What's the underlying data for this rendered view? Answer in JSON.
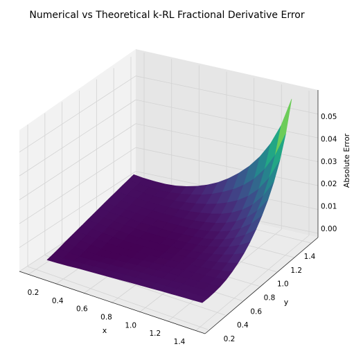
{
  "chart_data": {
    "type": "surface3d",
    "title": "Numerical vs Theoretical k-RL Fractional Derivative Error",
    "xlabel": "x",
    "ylabel": "y",
    "zlabel": "Absolute Error",
    "xlim": [
      0.1,
      1.6
    ],
    "ylim": [
      0.1,
      1.6
    ],
    "zlim": [
      0.0,
      0.055
    ],
    "x_ticks": [
      0.2,
      0.4,
      0.6,
      0.8,
      1.0,
      1.2,
      1.4
    ],
    "y_ticks": [
      0.2,
      0.4,
      0.6,
      0.8,
      1.0,
      1.2,
      1.4
    ],
    "z_ticks": [
      0.0,
      0.01,
      0.02,
      0.03,
      0.04,
      0.05
    ],
    "x_tick_labels": [
      "0.2",
      "0.4",
      "0.6",
      "0.8",
      "1.0",
      "1.2",
      "1.4"
    ],
    "y_tick_labels": [
      "0.2",
      "0.4",
      "0.6",
      "0.8",
      "1.0",
      "1.2",
      "1.4"
    ],
    "z_tick_labels": [
      "0.00",
      "0.01",
      "0.02",
      "0.03",
      "0.04",
      "0.05"
    ],
    "colormap": "viridis",
    "grid": true,
    "x": [
      0.1,
      0.2,
      0.3,
      0.4,
      0.5,
      0.6,
      0.7,
      0.8,
      0.9,
      1.0,
      1.1,
      1.2,
      1.3,
      1.4,
      1.5,
      1.6
    ],
    "y": [
      0.1,
      0.2,
      0.3,
      0.4,
      0.5,
      0.6,
      0.7,
      0.8,
      0.9,
      1.0,
      1.1,
      1.2,
      1.3,
      1.4,
      1.5,
      1.6
    ],
    "z": [
      [
        0.0011,
        0.0011,
        0.0012,
        0.0014,
        0.0015,
        0.0016,
        0.0017,
        0.0018,
        0.0019,
        0.002,
        0.0021,
        0.0022,
        0.0022,
        0.0023,
        0.0023,
        0.0024
      ],
      [
        0.0011,
        0.0008,
        0.0008,
        0.0009,
        0.0011,
        0.0012,
        0.0014,
        0.0015,
        0.0016,
        0.0017,
        0.0018,
        0.0018,
        0.0019,
        0.002,
        0.002,
        0.002
      ],
      [
        0.0012,
        0.0008,
        0.0004,
        0.0004,
        0.0006,
        0.0008,
        0.001,
        0.0012,
        0.0013,
        0.0014,
        0.0015,
        0.0016,
        0.0017,
        0.0017,
        0.0018,
        0.0019
      ],
      [
        0.0014,
        0.0009,
        0.0004,
        0.0001,
        0.0002,
        0.0004,
        0.0006,
        0.0008,
        0.001,
        0.0011,
        0.0013,
        0.0014,
        0.0015,
        0.0016,
        0.0017,
        0.002
      ],
      [
        0.0015,
        0.0011,
        0.0006,
        0.0002,
        0.0001,
        0.0002,
        0.0003,
        0.0005,
        0.0007,
        0.0009,
        0.0011,
        0.0013,
        0.0015,
        0.0017,
        0.002,
        0.0025
      ],
      [
        0.0016,
        0.0012,
        0.0008,
        0.0004,
        0.0002,
        0.0001,
        0.0002,
        0.0003,
        0.0005,
        0.0008,
        0.001,
        0.0013,
        0.0016,
        0.002,
        0.0026,
        0.0035
      ],
      [
        0.0017,
        0.0014,
        0.001,
        0.0006,
        0.0003,
        0.0002,
        0.0002,
        0.0003,
        0.0004,
        0.0007,
        0.001,
        0.0014,
        0.0019,
        0.0026,
        0.0036,
        0.0049
      ],
      [
        0.0018,
        0.0015,
        0.0012,
        0.0008,
        0.0005,
        0.0003,
        0.0003,
        0.0003,
        0.0005,
        0.0007,
        0.0011,
        0.0016,
        0.0023,
        0.0034,
        0.0048,
        0.0067
      ],
      [
        0.0019,
        0.0016,
        0.0013,
        0.001,
        0.0007,
        0.0005,
        0.0004,
        0.0005,
        0.0006,
        0.0009,
        0.0013,
        0.002,
        0.003,
        0.0044,
        0.0064,
        0.0091
      ],
      [
        0.002,
        0.0017,
        0.0014,
        0.0011,
        0.0009,
        0.0008,
        0.0007,
        0.0007,
        0.0009,
        0.0012,
        0.0017,
        0.0026,
        0.0039,
        0.0058,
        0.0085,
        0.0121
      ],
      [
        0.0021,
        0.0018,
        0.0015,
        0.0013,
        0.0011,
        0.001,
        0.001,
        0.0011,
        0.0013,
        0.0017,
        0.0024,
        0.0035,
        0.0051,
        0.0076,
        0.011,
        0.0158
      ],
      [
        0.0022,
        0.0018,
        0.0016,
        0.0014,
        0.0013,
        0.0013,
        0.0014,
        0.0016,
        0.002,
        0.0026,
        0.0035,
        0.0049,
        0.0069,
        0.0099,
        0.0142,
        0.0202
      ],
      [
        0.0022,
        0.0019,
        0.0017,
        0.0015,
        0.0015,
        0.0016,
        0.0019,
        0.0023,
        0.003,
        0.0039,
        0.0051,
        0.0069,
        0.0095,
        0.0131,
        0.0183,
        0.0257
      ],
      [
        0.0023,
        0.002,
        0.0017,
        0.0016,
        0.0017,
        0.002,
        0.0026,
        0.0034,
        0.0044,
        0.0058,
        0.0076,
        0.0099,
        0.0131,
        0.0175,
        0.0238,
        0.0327
      ],
      [
        0.0023,
        0.002,
        0.0018,
        0.0017,
        0.002,
        0.0026,
        0.0036,
        0.0048,
        0.0064,
        0.0085,
        0.011,
        0.0142,
        0.0183,
        0.0238,
        0.0313,
        0.042
      ],
      [
        0.0024,
        0.002,
        0.0019,
        0.002,
        0.0025,
        0.0035,
        0.0049,
        0.0067,
        0.0091,
        0.0121,
        0.0158,
        0.0202,
        0.0257,
        0.0327,
        0.042,
        0.055
      ]
    ]
  }
}
